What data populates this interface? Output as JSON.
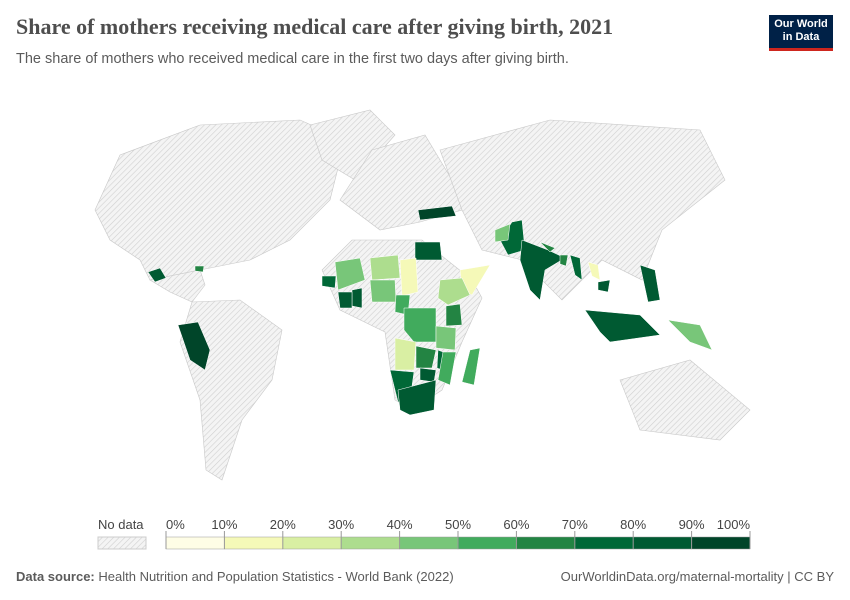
{
  "header": {
    "title": "Share of mothers receiving medical care after giving birth, 2021",
    "subtitle": "The share of mothers who received medical care in the first two days after giving birth.",
    "logo_line1": "Our World",
    "logo_line2": "in Data"
  },
  "legend": {
    "no_data_label": "No data",
    "ticks": [
      "0%",
      "10%",
      "20%",
      "30%",
      "40%",
      "50%",
      "60%",
      "70%",
      "80%",
      "90%",
      "100%"
    ],
    "colors": [
      "#fefde6",
      "#f5f9b8",
      "#d9efa3",
      "#addd8e",
      "#78c679",
      "#41ab5d",
      "#238443",
      "#006837",
      "#005a32",
      "#004529"
    ]
  },
  "footer": {
    "source_label": "Data source:",
    "source": "Health Nutrition and Population Statistics - World Bank (2022)",
    "link": "OurWorldinData.org/maternal-mortality | CC BY"
  },
  "map_data": {
    "countries": [
      {
        "name": "Egypt",
        "value": 85
      },
      {
        "name": "Turkey",
        "value": 90
      },
      {
        "name": "Pakistan",
        "value": 75
      },
      {
        "name": "Afghanistan",
        "value": 40
      },
      {
        "name": "India",
        "value": 82
      },
      {
        "name": "Nepal",
        "value": 60
      },
      {
        "name": "Bangladesh",
        "value": 65
      },
      {
        "name": "Myanmar",
        "value": 75
      },
      {
        "name": "Cambodia",
        "value": 85
      },
      {
        "name": "Laos",
        "value": 15
      },
      {
        "name": "Philippines",
        "value": 85
      },
      {
        "name": "Indonesia",
        "value": 85
      },
      {
        "name": "Papua New Guinea",
        "value": 45
      },
      {
        "name": "Peru",
        "value": 95
      },
      {
        "name": "Guatemala",
        "value": 80
      },
      {
        "name": "Haiti",
        "value": 60
      },
      {
        "name": "Senegal",
        "value": 70
      },
      {
        "name": "Mali",
        "value": 45
      },
      {
        "name": "Niger",
        "value": 35
      },
      {
        "name": "Chad",
        "value": 10
      },
      {
        "name": "Nigeria",
        "value": 45
      },
      {
        "name": "Ghana",
        "value": 85
      },
      {
        "name": "Cote d'Ivoire",
        "value": 80
      },
      {
        "name": "Cameroon",
        "value": 55
      },
      {
        "name": "Somalia",
        "value": 10
      },
      {
        "name": "Ethiopia",
        "value": 35
      },
      {
        "name": "Kenya",
        "value": 60
      },
      {
        "name": "DR Congo",
        "value": 50
      },
      {
        "name": "Tanzania",
        "value": 40
      },
      {
        "name": "Angola",
        "value": 25
      },
      {
        "name": "Zambia",
        "value": 65
      },
      {
        "name": "Malawi",
        "value": 75
      },
      {
        "name": "Mozambique",
        "value": 55
      },
      {
        "name": "Madagascar",
        "value": 50
      },
      {
        "name": "Zimbabwe",
        "value": 80
      },
      {
        "name": "Namibia",
        "value": 70
      },
      {
        "name": "South Africa",
        "value": 88
      }
    ]
  }
}
